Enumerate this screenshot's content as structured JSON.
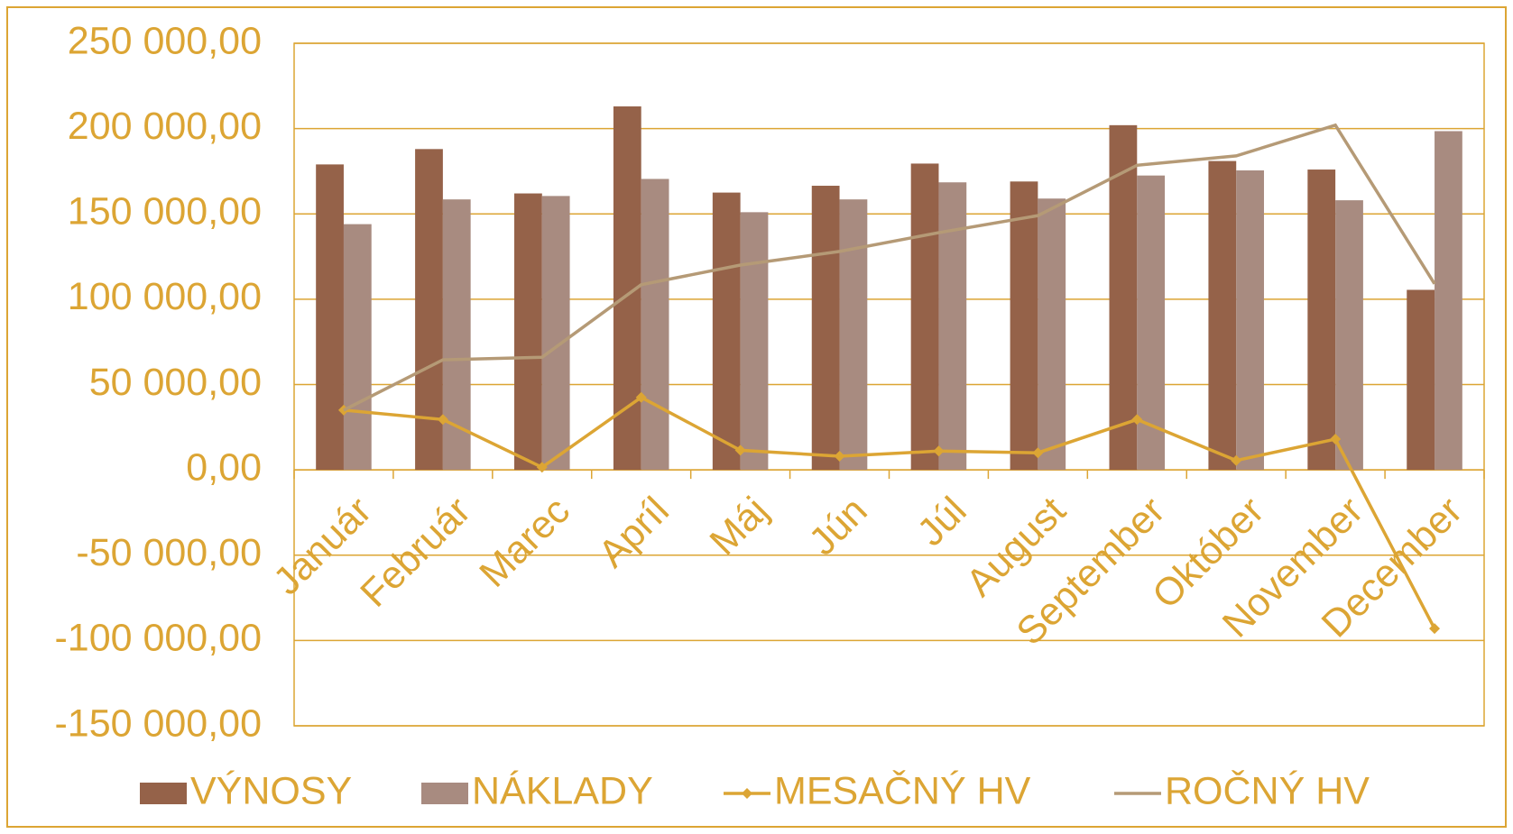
{
  "chart_data": {
    "type": "bar",
    "categories": [
      "Január",
      "Február",
      "Marec",
      "Apríl",
      "Máj",
      "Jún",
      "Júl",
      "August",
      "September",
      "Október",
      "November",
      "December"
    ],
    "series": [
      {
        "name": "VÝNOSY",
        "type": "bar",
        "color": "#956249",
        "values": [
          179000,
          188000,
          162000,
          213000,
          162500,
          166500,
          179500,
          169000,
          202000,
          181000,
          176000,
          105500
        ]
      },
      {
        "name": "NÁKLADY",
        "type": "bar",
        "color": "#a88b80",
        "values": [
          144000,
          158500,
          160500,
          170500,
          151000,
          158500,
          168500,
          159000,
          172500,
          175500,
          158000,
          198500
        ]
      },
      {
        "name": "MESAČNÝ HV",
        "type": "line",
        "marker": "diamond",
        "color": "#dca534",
        "values": [
          35000,
          29500,
          1500,
          42500,
          11500,
          8000,
          11000,
          10000,
          29500,
          5500,
          18000,
          -93000
        ]
      },
      {
        "name": "ROČNÝ HV",
        "type": "line",
        "color": "#b59a76",
        "values": [
          35000,
          64500,
          66000,
          108500,
          120000,
          128000,
          139000,
          149000,
          178500,
          184000,
          202000,
          109000
        ]
      }
    ],
    "ylim": [
      -150000,
      250000
    ],
    "yticks": [
      {
        "value": -150000,
        "label": "-150 000,00"
      },
      {
        "value": -100000,
        "label": "-100 000,00"
      },
      {
        "value": -50000,
        "label": "-50 000,00"
      },
      {
        "value": 0,
        "label": "0,00"
      },
      {
        "value": 50000,
        "label": "50 000,00"
      },
      {
        "value": 100000,
        "label": "100 000,00"
      },
      {
        "value": 150000,
        "label": "150 000,00"
      },
      {
        "value": 200000,
        "label": "200 000,00"
      },
      {
        "value": 250000,
        "label": "250 000,00"
      }
    ],
    "grid": true,
    "legend": "bottom"
  }
}
